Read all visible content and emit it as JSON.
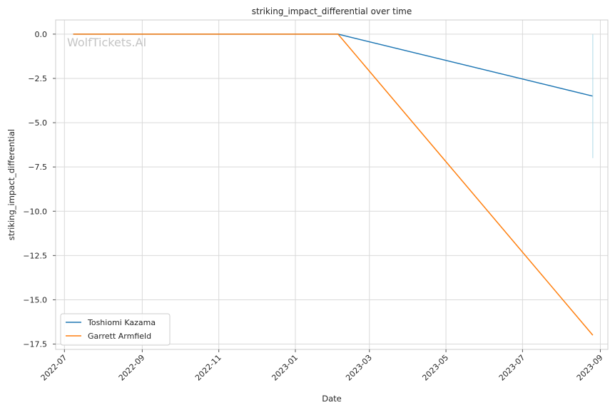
{
  "chart_data": {
    "type": "line",
    "title": "striking_impact_differential over time",
    "xlabel": "Date",
    "ylabel": "striking_impact_differential",
    "watermark": "WolfTickets.AI",
    "x_ticks": [
      "2022-07",
      "2022-09",
      "2022-11",
      "2023-01",
      "2023-03",
      "2023-05",
      "2023-07",
      "2023-09"
    ],
    "y_ticks": [
      "0.0",
      "−2.5",
      "−5.0",
      "−7.5",
      "−10.0",
      "−12.5",
      "−15.0",
      "−17.5"
    ],
    "xlim": [
      "2022-06-24",
      "2023-09-07"
    ],
    "ylim": [
      -17.8,
      0.8
    ],
    "grid": true,
    "legend_position": "lower-left",
    "series": [
      {
        "name": "Toshiomi Kazama",
        "color": "#1f77b4",
        "x": [
          "2022-07-08",
          "2023-02-04",
          "2023-08-26"
        ],
        "y": [
          0,
          0,
          -3.5
        ]
      },
      {
        "name": "Garrett Armfield",
        "color": "#ff7f0e",
        "x": [
          "2022-07-08",
          "2023-02-04",
          "2023-08-26"
        ],
        "y": [
          0,
          0,
          -17
        ]
      }
    ],
    "error_bar": {
      "color": "#add8e6",
      "x": "2023-08-26",
      "y_range": [
        0,
        -7
      ]
    }
  }
}
